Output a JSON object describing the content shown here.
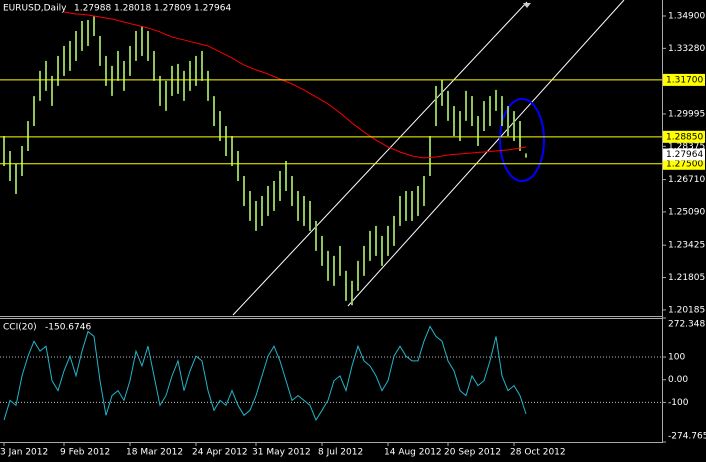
{
  "chart_data": [
    {
      "type": "ohlc",
      "title": "EURUSD,Daily",
      "ohlc": [
        1.27988,
        1.28018,
        1.27809,
        1.27964
      ],
      "color": "#8fc45a",
      "grid": false,
      "categories": [
        "3 Jan 2012",
        null,
        null,
        null,
        null,
        null,
        null,
        null,
        null,
        null,
        "9 Feb 2012",
        null,
        null,
        null,
        null,
        null,
        null,
        null,
        null,
        null,
        null,
        "18 Mar 2012",
        null,
        null,
        null,
        null,
        null,
        null,
        null,
        null,
        null,
        null,
        "24 Apr 2012",
        null,
        null,
        null,
        null,
        null,
        null,
        null,
        null,
        null,
        "31 May 2012",
        null,
        null,
        null,
        null,
        null,
        null,
        null,
        null,
        null,
        null,
        "8 Jul 2012",
        null,
        null,
        null,
        null,
        null,
        null,
        null,
        null,
        null,
        null,
        "14 Aug 2012",
        null,
        null,
        null,
        null,
        null,
        null,
        null,
        null,
        null,
        "20 Sep 2012",
        null,
        null,
        null,
        null,
        null,
        null,
        null,
        null,
        null,
        null,
        "28 Oct 2012",
        null,
        null
      ],
      "high": [
        1.2889,
        1.2814,
        1.2749,
        1.2839,
        1.2964,
        1.3089,
        1.3215,
        1.3265,
        1.319,
        1.329,
        1.334,
        1.3365,
        1.3415,
        1.3465,
        1.347,
        1.3488,
        1.339,
        1.329,
        1.324,
        1.3315,
        1.3265,
        1.334,
        1.3415,
        1.344,
        1.3415,
        1.3315,
        1.319,
        1.3165,
        1.324,
        1.325,
        1.3215,
        1.3265,
        1.329,
        1.3315,
        1.3215,
        1.3089,
        1.3014,
        1.2939,
        1.2889,
        1.2814,
        1.2689,
        1.2614,
        1.2564,
        1.2589,
        1.2639,
        1.2664,
        1.2714,
        1.2764,
        1.2689,
        1.2614,
        1.2589,
        1.2564,
        1.2464,
        1.2389,
        1.2314,
        1.2289,
        1.2339,
        1.2214,
        1.2164,
        1.2264,
        1.2339,
        1.2414,
        1.2439,
        1.2389,
        1.2439,
        1.2489,
        1.2589,
        1.2614,
        1.2614,
        1.2639,
        1.2689,
        1.2889,
        1.314,
        1.317,
        1.3115,
        1.3039,
        1.3014,
        1.3115,
        1.3089,
        1.2989,
        1.3064,
        1.3089,
        1.312,
        1.3089,
        1.3039,
        1.3014,
        1.2964,
        1.2802
      ],
      "low": [
        1.2739,
        1.2664,
        1.2599,
        1.2689,
        1.2814,
        1.2939,
        1.3065,
        1.3115,
        1.304,
        1.314,
        1.319,
        1.3215,
        1.3265,
        1.3315,
        1.334,
        1.339,
        1.324,
        1.314,
        1.309,
        1.3165,
        1.3115,
        1.319,
        1.3265,
        1.329,
        1.3265,
        1.3165,
        1.304,
        1.3015,
        1.309,
        1.31,
        1.3065,
        1.3115,
        1.314,
        1.3165,
        1.3065,
        1.2939,
        1.2864,
        1.2789,
        1.2739,
        1.2664,
        1.2539,
        1.2464,
        1.2414,
        1.2439,
        1.2489,
        1.2514,
        1.2564,
        1.2614,
        1.2539,
        1.2464,
        1.2439,
        1.2414,
        1.2314,
        1.2239,
        1.2164,
        1.2139,
        1.2189,
        1.2064,
        1.2042,
        1.2114,
        1.2189,
        1.2264,
        1.2289,
        1.2239,
        1.2289,
        1.2339,
        1.2439,
        1.2464,
        1.2464,
        1.2489,
        1.2539,
        1.2689,
        1.2939,
        1.304,
        1.2965,
        1.2889,
        1.2864,
        1.2965,
        1.2939,
        1.2839,
        1.2914,
        1.2939,
        1.3015,
        1.2939,
        1.2889,
        1.2864,
        1.2814,
        1.2781
      ],
      "ma": {
        "color": "#ff0000",
        "values": [
          null,
          null,
          null,
          null,
          null,
          null,
          null,
          null,
          null,
          null,
          1.351,
          1.3505,
          1.35,
          1.3498,
          1.3495,
          1.349,
          1.3485,
          1.348,
          1.3475,
          1.3467,
          1.346,
          1.3452,
          1.3445,
          1.3437,
          1.343,
          1.342,
          1.341,
          1.3397,
          1.3385,
          1.3377,
          1.337,
          1.3362,
          1.3355,
          1.3347,
          1.334,
          1.3325,
          1.331,
          1.3295,
          1.328,
          1.3262,
          1.3245,
          1.3232,
          1.322,
          1.321,
          1.32,
          1.3187,
          1.3175,
          1.3162,
          1.315,
          1.3135,
          1.312,
          1.3102,
          1.3085,
          1.3067,
          1.305,
          1.3027,
          1.3005,
          1.298,
          1.2954,
          1.2932,
          1.2909,
          1.2889,
          1.2869,
          1.2852,
          1.2834,
          1.2822,
          1.2809,
          1.2799,
          1.2789,
          1.2784,
          1.2779,
          1.2782,
          1.2784,
          1.2789,
          1.2794,
          1.2797,
          1.2799,
          1.2802,
          1.2804,
          1.2807,
          1.2809,
          1.2812,
          1.2814,
          1.2817,
          1.2819,
          1.2824,
          1.2829,
          1.2834
        ]
      },
      "hlines": {
        "color": "#ffff00",
        "lines": [
          {
            "value": 1.317,
            "label": "1.31700"
          },
          {
            "value": 1.2885,
            "label": "1.28850"
          },
          {
            "value": 1.275,
            "label": "1.27500"
          }
        ]
      },
      "ylim": [
        1.1988,
        1.357
      ],
      "yticks": [
        {
          "value": 1.349,
          "label": "1.34900"
        },
        {
          "value": 1.3328,
          "label": "1.33280"
        },
        1.29995,
        1.28375,
        {
          "value": 1.2671,
          "label": "1.26710"
        },
        {
          "value": 1.2509,
          "label": "1.25090"
        },
        1.23425,
        1.21805,
        1.20185
      ]
    },
    {
      "type": "line",
      "title": "CCI(20)",
      "last_value": -150.6746,
      "color": "#22b5c8",
      "values": [
        -178,
        -91,
        -113,
        17,
        104,
        170,
        126,
        148,
        -4,
        -48,
        39,
        104,
        17,
        126,
        213,
        191,
        -4,
        -157,
        -70,
        -48,
        -91,
        -4,
        126,
        61,
        148,
        17,
        -113,
        -70,
        17,
        83,
        -48,
        39,
        104,
        83,
        -48,
        -135,
        -91,
        -113,
        -48,
        -113,
        -157,
        -135,
        -70,
        17,
        104,
        148,
        83,
        -4,
        -91,
        -70,
        -91,
        -113,
        -178,
        -135,
        -91,
        -4,
        17,
        -48,
        61,
        148,
        83,
        61,
        17,
        -48,
        -4,
        104,
        148,
        104,
        83,
        83,
        170,
        235,
        191,
        170,
        83,
        39,
        -48,
        -70,
        17,
        -26,
        -4,
        83,
        191,
        17,
        -48,
        -26,
        -70,
        -150.6746
      ],
      "ylim": [
        -274.765,
        272.3487
      ],
      "yticks": [
        272.3487,
        100,
        {
          "value": 0,
          "label": "0.00"
        },
        -100,
        -274.765
      ],
      "levels": [
        100,
        -100
      ]
    }
  ]
}
